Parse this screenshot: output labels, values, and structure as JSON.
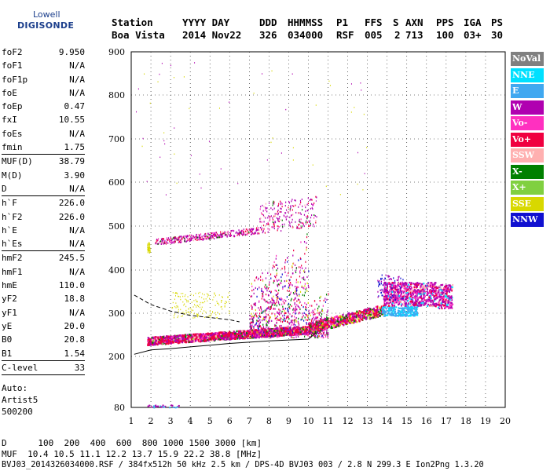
{
  "logo": {
    "line1": "Lowell",
    "line2": "DIGISONDE"
  },
  "header": {
    "labels": [
      "Station",
      "YYYY DAY",
      "DDD",
      "HHMMSS",
      "P1",
      "FFS",
      "S",
      "AXN",
      "PPS",
      "IGA",
      "PS"
    ],
    "values": [
      "Boa Vista",
      "2014 Nov22",
      "326",
      "034000",
      "RSF",
      "005",
      "2",
      "713",
      "100",
      "03+",
      "30"
    ]
  },
  "params": {
    "g1": [
      [
        "foF2",
        "9.950"
      ],
      [
        "foF1",
        "N/A"
      ],
      [
        "foF1p",
        "N/A"
      ],
      [
        "foE",
        "N/A"
      ],
      [
        "foEp",
        "0.47"
      ],
      [
        "fxI",
        "10.55"
      ],
      [
        "foEs",
        "N/A"
      ],
      [
        "fmin",
        "1.75"
      ]
    ],
    "g2": [
      [
        "MUF(D)",
        "38.79"
      ],
      [
        "M(D)",
        "3.90"
      ],
      [
        "D",
        "N/A"
      ]
    ],
    "g3": [
      [
        "h`F",
        "226.0"
      ],
      [
        "h`F2",
        "226.0"
      ],
      [
        "h`E",
        "N/A"
      ],
      [
        "h`Es",
        "N/A"
      ]
    ],
    "g4": [
      [
        "hmF2",
        "245.5"
      ],
      [
        "hmF1",
        "N/A"
      ],
      [
        "hmE",
        "110.0"
      ],
      [
        "yF2",
        "18.8"
      ],
      [
        "yF1",
        "N/A"
      ],
      [
        "yE",
        "20.0"
      ],
      [
        "B0",
        "20.8"
      ],
      [
        "B1",
        "1.54"
      ]
    ],
    "g5": [
      [
        "C-level",
        "33"
      ]
    ],
    "auto_label": "Auto:",
    "artist": "Artist5",
    "number": "500200"
  },
  "legend": [
    {
      "label": "NoVal",
      "color": "#808080"
    },
    {
      "label": "NNE",
      "color": "#00e0ff"
    },
    {
      "label": "E",
      "color": "#40a8f0"
    },
    {
      "label": "W",
      "color": "#b000b0"
    },
    {
      "label": "Vo-",
      "color": "#ff30c0"
    },
    {
      "label": "Vo+",
      "color": "#f00040"
    },
    {
      "label": "SSW",
      "color": "#ffb0b0"
    },
    {
      "label": "X-",
      "color": "#008000"
    },
    {
      "label": "X+",
      "color": "#80d040"
    },
    {
      "label": "SSE",
      "color": "#d8d800"
    },
    {
      "label": "NNW",
      "color": "#1010d0"
    }
  ],
  "footer": {
    "line1": "D      100  200  400  600  800 1000 1500 3000 [km]",
    "line2": "MUF  10.4 10.5 11.1 12.2 13.7 15.9 22.2 38.8 [MHz]",
    "line3": "BVJ03_2014326034000.RSF / 384fx512h 50 kHz 2.5 km / DPS-4D BVJ03 003 / 2.8 N 299.3 E Ion2Png 1.3.20"
  },
  "chart_data": {
    "type": "scatter",
    "x_ticks": [
      1,
      2,
      3,
      4,
      5,
      6,
      7,
      8,
      9,
      10,
      11,
      12,
      13,
      14,
      15,
      16,
      17,
      18,
      19,
      20
    ],
    "y_ticks": [
      80,
      200,
      300,
      400,
      500,
      600,
      700,
      800,
      900
    ],
    "xlim": [
      1,
      20
    ],
    "ylim": [
      80,
      900
    ],
    "grid": true,
    "legend_position": "right",
    "traces": [
      {
        "series": "Vo+",
        "x_range": [
          1.8,
          10.3
        ],
        "y_range": [
          228,
          252
        ],
        "description": "O-mode F2 trace"
      },
      {
        "series": "W",
        "x_range": [
          1.8,
          10.3
        ],
        "y_range": [
          236,
          265
        ]
      },
      {
        "series": "Vo+",
        "x_range": [
          10,
          13.8
        ],
        "y_range": [
          255,
          300
        ]
      },
      {
        "series": "W",
        "x_range": [
          13.8,
          17.3
        ],
        "y_range": [
          320,
          365
        ]
      },
      {
        "series": "E",
        "x_range": [
          13.7,
          15.5
        ],
        "y_range": [
          295,
          320
        ]
      },
      {
        "series": "W",
        "x_range": [
          2.2,
          10.4
        ],
        "y_range": [
          455,
          560
        ],
        "description": "multi-hop echo"
      }
    ],
    "profile_solid": [
      [
        1.15,
        205
      ],
      [
        2,
        215
      ],
      [
        3,
        218
      ],
      [
        4,
        222
      ],
      [
        5,
        226
      ],
      [
        6,
        230
      ],
      [
        7,
        233
      ],
      [
        8,
        236
      ],
      [
        9,
        238
      ],
      [
        10,
        240
      ],
      [
        10.4,
        255
      ]
    ],
    "profile_dashed": [
      [
        1.15,
        342
      ],
      [
        2,
        320
      ],
      [
        3,
        305
      ],
      [
        4,
        295
      ],
      [
        5,
        290
      ],
      [
        6,
        285
      ],
      [
        6.5,
        280
      ]
    ]
  }
}
